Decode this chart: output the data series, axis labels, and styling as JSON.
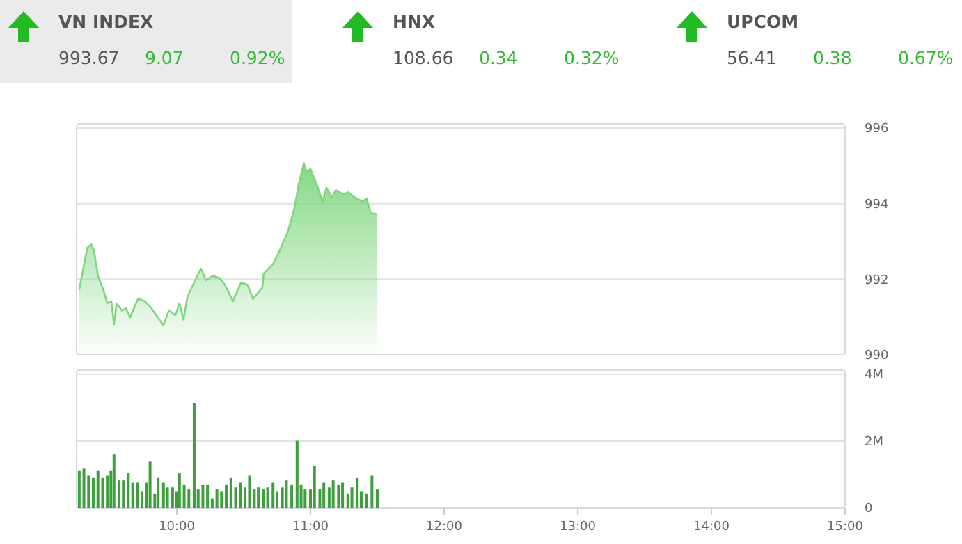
{
  "chart_data": [
    {
      "type": "other",
      "annotations": [
        "VN INDEX",
        "993.67",
        "9.07",
        "0.92%",
        "HNX",
        "108.66",
        "0.34",
        "0.32%",
        "UPCOM",
        "56.41",
        "0.38",
        "0.67%"
      ]
    },
    {
      "type": "area",
      "x": [
        9.27,
        9.33,
        9.36,
        9.38,
        9.41,
        9.45,
        9.48,
        9.51,
        9.53,
        9.55,
        9.59,
        9.62,
        9.65,
        9.71,
        9.76,
        9.81,
        9.9,
        9.94,
        9.99,
        10.02,
        10.05,
        10.08,
        10.13,
        10.18,
        10.22,
        10.27,
        10.32,
        10.36,
        10.42,
        10.48,
        10.53,
        10.57,
        10.64,
        10.65,
        10.72,
        10.77,
        10.83,
        10.88,
        10.91,
        10.95,
        10.97,
        11.0,
        11.05,
        11.09,
        11.12,
        11.16,
        11.19,
        11.25,
        11.28,
        11.33,
        11.39,
        11.42,
        11.45,
        11.5
      ],
      "series": [
        {
          "color": "#7fd67f",
          "values": [
            991.72,
            992.83,
            992.92,
            992.76,
            992.09,
            991.72,
            991.36,
            991.42,
            990.81,
            991.36,
            991.17,
            991.23,
            990.99,
            991.48,
            991.42,
            991.23,
            990.78,
            991.17,
            991.05,
            991.36,
            990.93,
            991.54,
            991.91,
            992.28,
            991.97,
            992.09,
            992.03,
            991.85,
            991.42,
            991.91,
            991.85,
            991.48,
            991.78,
            992.15,
            992.4,
            992.76,
            993.25,
            993.87,
            994.48,
            995.07,
            994.85,
            994.91,
            994.48,
            994.05,
            994.42,
            994.17,
            994.36,
            994.24,
            994.3,
            994.17,
            994.05,
            994.14,
            993.75,
            993.72
          ]
        }
      ],
      "xlim": [
        9.25,
        15
      ],
      "ylim": [
        990,
        996
      ],
      "yticks": [
        990,
        992,
        994,
        996
      ],
      "grid": "y",
      "tick_labels": "y"
    },
    {
      "type": "bar",
      "x": [
        9.27,
        9.305,
        9.34,
        9.375,
        9.41,
        9.445,
        9.48,
        9.507,
        9.53,
        9.567,
        9.6,
        9.637,
        9.67,
        9.707,
        9.74,
        9.776,
        9.8,
        9.835,
        9.86,
        9.9,
        9.93,
        9.968,
        9.996,
        10.02,
        10.055,
        10.09,
        10.13,
        10.16,
        10.195,
        10.23,
        10.265,
        10.3,
        10.335,
        10.37,
        10.405,
        10.44,
        10.475,
        10.51,
        10.544,
        10.58,
        10.61,
        10.65,
        10.68,
        10.72,
        10.75,
        10.79,
        10.82,
        10.86,
        10.9,
        10.93,
        10.96,
        11.0,
        11.03,
        11.07,
        11.1,
        11.14,
        11.17,
        11.21,
        11.24,
        11.28,
        11.31,
        11.35,
        11.38,
        11.42,
        11.46,
        11.5
      ],
      "series": [
        {
          "color": "#3f9f3f",
          "values": [
            1.11,
            1.18,
            0.97,
            0.9,
            1.11,
            0.9,
            0.97,
            1.11,
            1.6,
            0.83,
            0.83,
            1.04,
            0.76,
            0.76,
            0.49,
            0.76,
            1.39,
            0.42,
            0.9,
            0.76,
            0.62,
            0.62,
            0.49,
            1.04,
            0.69,
            0.56,
            3.13,
            0.56,
            0.69,
            0.69,
            0.28,
            0.56,
            0.49,
            0.69,
            0.9,
            0.62,
            0.76,
            0.62,
            0.97,
            0.56,
            0.62,
            0.56,
            0.62,
            0.76,
            0.49,
            0.62,
            0.83,
            0.69,
            2.01,
            0.69,
            0.56,
            0.56,
            1.25,
            0.56,
            0.76,
            0.62,
            0.83,
            0.69,
            0.76,
            0.42,
            0.62,
            0.9,
            0.49,
            0.42,
            0.97,
            0.56
          ]
        }
      ],
      "xlim": [
        9.25,
        15
      ],
      "xticks": [
        {
          "value": 10,
          "label": "10:00"
        },
        {
          "value": 11,
          "label": "11:00"
        },
        {
          "value": 12,
          "label": "12:00"
        },
        {
          "value": 13,
          "label": "13:00"
        },
        {
          "value": 14,
          "label": "14:00"
        },
        {
          "value": 15,
          "label": "15:00"
        }
      ],
      "ylim": [
        0,
        4
      ],
      "yticks": [
        0,
        {
          "value": 2,
          "label": "2M"
        },
        {
          "value": 4,
          "label": "4M"
        }
      ],
      "grid": "y"
    }
  ]
}
